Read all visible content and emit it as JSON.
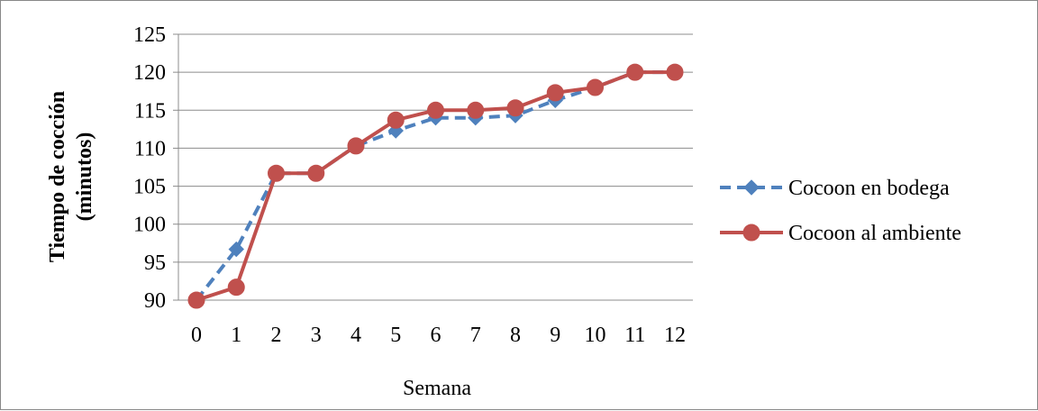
{
  "chart_data": {
    "type": "line",
    "xlabel": "Semana",
    "ylabel_lines": [
      "Tiempo de cocción",
      "(minutos)"
    ],
    "x": [
      0,
      1,
      2,
      3,
      4,
      5,
      6,
      7,
      8,
      9,
      10,
      11,
      12
    ],
    "ylim": [
      90,
      125
    ],
    "yticks": [
      90,
      95,
      100,
      105,
      110,
      115,
      120,
      125
    ],
    "grid": "horizontal",
    "legend_position": "right",
    "series": [
      {
        "name": "Cocoon en bodega",
        "color": "#4F81BD",
        "line_style": "dashed",
        "marker": "diamond",
        "values": [
          90,
          96.7,
          106.7,
          106.7,
          110.3,
          112.3,
          114,
          114,
          114.3,
          116.3,
          118,
          120,
          120
        ]
      },
      {
        "name": "Cocoon al ambiente",
        "color": "#C0504D",
        "line_style": "solid",
        "marker": "circle",
        "values": [
          90,
          91.7,
          106.7,
          106.7,
          110.3,
          113.7,
          115,
          115,
          115.3,
          117.3,
          118,
          120,
          120
        ]
      }
    ]
  }
}
